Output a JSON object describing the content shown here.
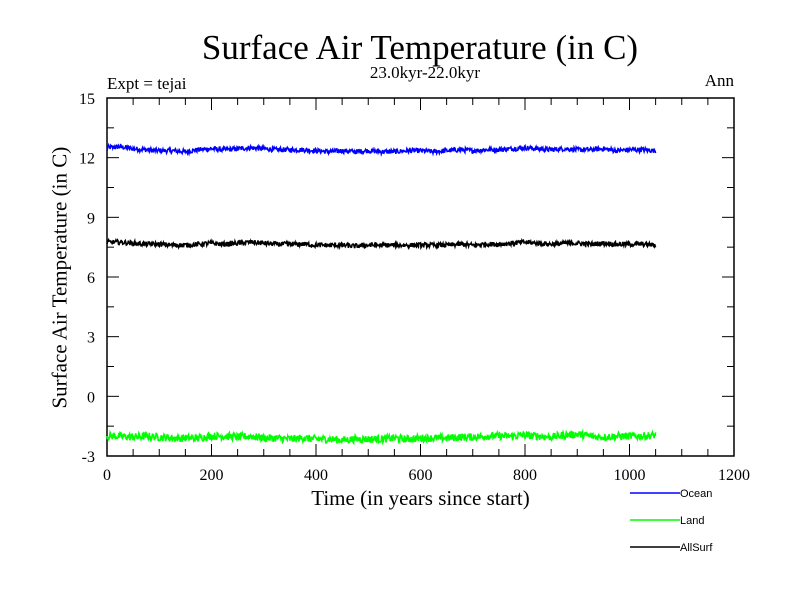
{
  "chart_data": {
    "type": "line",
    "title": "Surface Air Temperature (in C)",
    "subtitle": "23.0kyr-22.0kyr",
    "left_note": "Expt = tejai",
    "right_note": "Ann",
    "xlabel": "Time (in years since start)",
    "ylabel": "Surface Air Temperature (in C)",
    "xlim": [
      0,
      1200
    ],
    "ylim": [
      -3,
      15
    ],
    "xticks": [
      "0",
      "200",
      "400",
      "600",
      "800",
      "1000",
      "1200"
    ],
    "yticks": [
      "-3",
      "0",
      "3",
      "6",
      "9",
      "12",
      "15"
    ],
    "grid": false,
    "legend_position": "bottom-right",
    "x_range_of_data": [
      0,
      1050
    ],
    "noise_amplitude": 0.12,
    "series": [
      {
        "name": "Ocean",
        "color": "#0000ff",
        "mean": 12.4,
        "values": [
          12.5,
          12.55,
          12.45,
          12.4,
          12.35,
          12.35,
          12.3,
          12.4,
          12.45,
          12.4,
          12.45,
          12.5,
          12.45,
          12.4,
          12.4,
          12.4,
          12.35,
          12.3,
          12.35,
          12.3,
          12.35,
          12.3,
          12.3,
          12.35,
          12.35,
          12.3,
          12.35,
          12.4,
          12.35,
          12.4,
          12.4,
          12.45,
          12.5,
          12.45,
          12.4,
          12.45,
          12.4,
          12.4,
          12.45,
          12.35,
          12.4,
          12.4,
          12.35
        ]
      },
      {
        "name": "Land",
        "color": "#00ff00",
        "mean": -2.05,
        "values": [
          -2.0,
          -2.0,
          -2.05,
          -2.0,
          -2.05,
          -2.1,
          -2.1,
          -2.1,
          -2.0,
          -2.0,
          -2.05,
          -2.0,
          -2.1,
          -2.1,
          -2.15,
          -2.1,
          -2.15,
          -2.15,
          -2.2,
          -2.15,
          -2.15,
          -2.15,
          -2.1,
          -2.15,
          -2.1,
          -2.1,
          -2.1,
          -2.05,
          -2.05,
          -2.0,
          -2.0,
          -2.0,
          -1.95,
          -2.0,
          -2.05,
          -1.95,
          -1.9,
          -2.0,
          -2.05,
          -2.0,
          -2.0,
          -2.0,
          -1.95
        ]
      },
      {
        "name": "AllSurf",
        "color": "#000000",
        "mean": 7.65,
        "values": [
          7.75,
          7.75,
          7.7,
          7.65,
          7.65,
          7.6,
          7.6,
          7.65,
          7.7,
          7.65,
          7.7,
          7.75,
          7.7,
          7.65,
          7.65,
          7.65,
          7.6,
          7.6,
          7.6,
          7.55,
          7.6,
          7.6,
          7.6,
          7.6,
          7.6,
          7.6,
          7.6,
          7.65,
          7.6,
          7.65,
          7.65,
          7.7,
          7.75,
          7.7,
          7.65,
          7.7,
          7.7,
          7.65,
          7.7,
          7.65,
          7.65,
          7.65,
          7.6
        ]
      }
    ]
  }
}
